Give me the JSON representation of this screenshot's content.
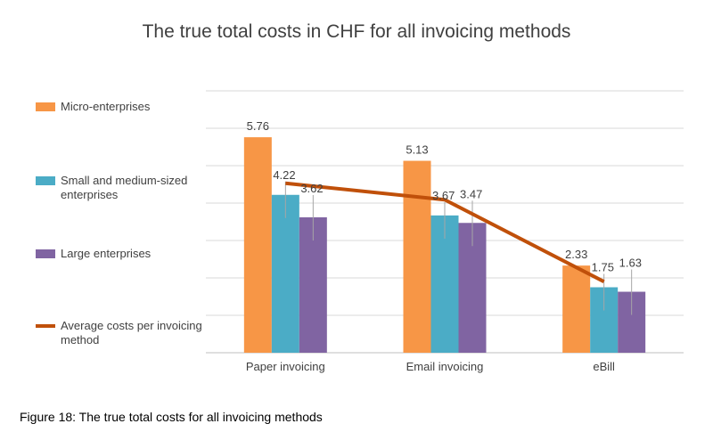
{
  "chart_data": {
    "type": "bar",
    "title": "The true total costs in CHF for all invoicing methods",
    "categories": [
      "Paper invoicing",
      "Email invoicing",
      "eBill"
    ],
    "series": [
      {
        "name": "Micro-enterprises",
        "color": "#f79646",
        "values": [
          5.76,
          5.13,
          2.33
        ]
      },
      {
        "name": "Small and medium-sized enterprises",
        "color": "#4bacc6",
        "values": [
          4.22,
          3.67,
          1.75
        ]
      },
      {
        "name": "Large enterprises",
        "color": "#8064a2",
        "values": [
          3.62,
          3.47,
          1.63
        ]
      }
    ],
    "line_series": {
      "name": "Average costs per invoicing method",
      "color": "#c0500a",
      "values": [
        4.53,
        4.09,
        1.9
      ]
    },
    "ylim": [
      0,
      7
    ],
    "grid": true,
    "legend_position": "left",
    "xlabel": "",
    "ylabel": ""
  },
  "caption": "Figure 18: The true total costs for all invoicing methods"
}
